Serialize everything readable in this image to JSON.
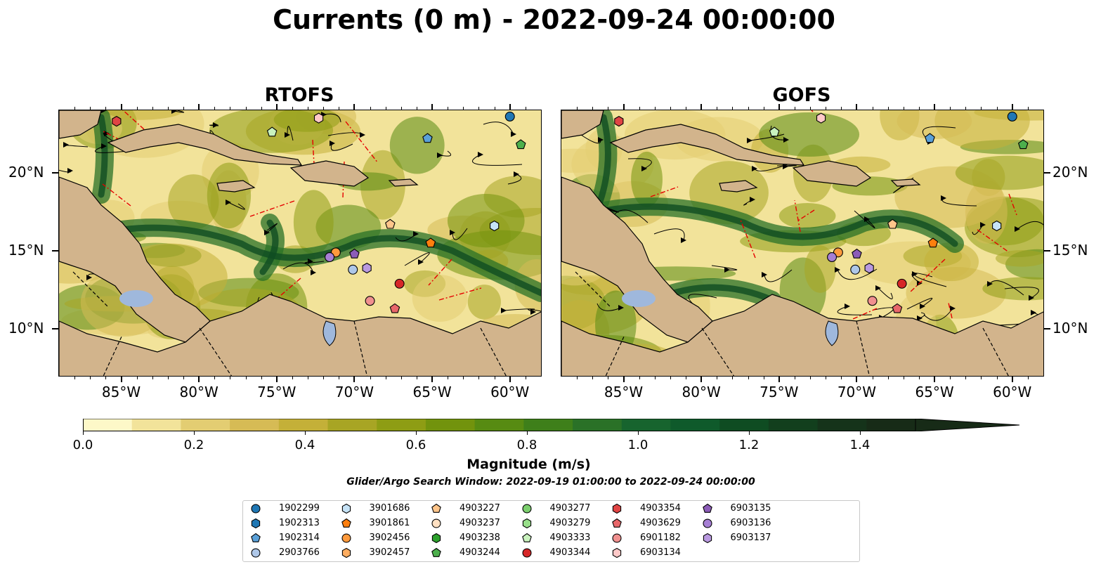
{
  "title": "Currents (0 m) - 2022-09-24 00:00:00",
  "panels": [
    {
      "name": "RTOFS"
    },
    {
      "name": "GOFS"
    }
  ],
  "map_extent": {
    "lon": [
      -89,
      -58
    ],
    "lat": [
      7,
      24
    ]
  },
  "lon_ticks": [
    {
      "value": -85,
      "label": "85°W"
    },
    {
      "value": -80,
      "label": "80°W"
    },
    {
      "value": -75,
      "label": "75°W"
    },
    {
      "value": -70,
      "label": "70°W"
    },
    {
      "value": -65,
      "label": "65°W"
    },
    {
      "value": -60,
      "label": "60°W"
    }
  ],
  "lat_ticks": [
    {
      "value": 10,
      "label": "10°N"
    },
    {
      "value": 15,
      "label": "15°N"
    },
    {
      "value": 20,
      "label": "20°N"
    }
  ],
  "colorbar": {
    "title": "Magnitude (m/s)",
    "range": [
      0,
      1.5
    ],
    "extend": "max",
    "colors": [
      "#fdf8c8",
      "#f2e39a",
      "#e3cd72",
      "#d6bb55",
      "#c4b038",
      "#a8a524",
      "#8e9d14",
      "#72930d",
      "#578b12",
      "#3e7f1a",
      "#2a7127",
      "#17642e",
      "#0f5a2b",
      "#0f4c22",
      "#123f1d",
      "#15331a",
      "#172b17"
    ],
    "ticks": [
      {
        "value": 0.0,
        "label": "0.0"
      },
      {
        "value": 0.2,
        "label": "0.2"
      },
      {
        "value": 0.4,
        "label": "0.4"
      },
      {
        "value": 0.6,
        "label": "0.6"
      },
      {
        "value": 0.8,
        "label": "0.8"
      },
      {
        "value": 1.0,
        "label": "1.0"
      },
      {
        "value": 1.2,
        "label": "1.2"
      },
      {
        "value": 1.4,
        "label": "1.4"
      }
    ]
  },
  "search_window": "Glider/Argo Search Window: 2022-09-19 01:00:00 to 2022-09-24 00:00:00",
  "legend": [
    {
      "id": "1902299",
      "shape": "circle",
      "color": "#1f77b4"
    },
    {
      "id": "1902313",
      "shape": "hexagon",
      "color": "#1f77b4"
    },
    {
      "id": "1902314",
      "shape": "pentagon",
      "color": "#5aa0d8"
    },
    {
      "id": "2903766",
      "shape": "circle",
      "color": "#aec7e8"
    },
    {
      "id": "3901686",
      "shape": "hexagon",
      "color": "#c6e3f7"
    },
    {
      "id": "3901861",
      "shape": "pentagon",
      "color": "#ff7f0e"
    },
    {
      "id": "3902456",
      "shape": "circle",
      "color": "#ff9a3c"
    },
    {
      "id": "3902457",
      "shape": "hexagon",
      "color": "#ffad60"
    },
    {
      "id": "4903227",
      "shape": "pentagon",
      "color": "#ffc58a"
    },
    {
      "id": "4903237",
      "shape": "circle",
      "color": "#ffe0c2"
    },
    {
      "id": "4903238",
      "shape": "hexagon",
      "color": "#2ca02c"
    },
    {
      "id": "4903244",
      "shape": "pentagon",
      "color": "#4caf4c"
    },
    {
      "id": "4903277",
      "shape": "circle",
      "color": "#7ccf6e"
    },
    {
      "id": "4903279",
      "shape": "hexagon",
      "color": "#98df8a"
    },
    {
      "id": "4903333",
      "shape": "pentagon",
      "color": "#c9f2be"
    },
    {
      "id": "4903344",
      "shape": "circle",
      "color": "#d62728"
    },
    {
      "id": "4903354",
      "shape": "hexagon",
      "color": "#e04444"
    },
    {
      "id": "4903629",
      "shape": "pentagon",
      "color": "#e8676a"
    },
    {
      "id": "6901182",
      "shape": "circle",
      "color": "#f0908f"
    },
    {
      "id": "6903134",
      "shape": "hexagon",
      "color": "#ffc9c8"
    },
    {
      "id": "6903135",
      "shape": "pentagon",
      "color": "#8c5cb8"
    },
    {
      "id": "6903136",
      "shape": "circle",
      "color": "#a67fd4"
    },
    {
      "id": "6903137",
      "shape": "hexagon",
      "color": "#b999e0"
    }
  ],
  "floats": [
    {
      "id": "4903354",
      "lon": -85.3,
      "lat": 23.3
    },
    {
      "id": "6903134",
      "lon": -72.3,
      "lat": 23.5
    },
    {
      "id": "4903333",
      "lon": -75.3,
      "lat": 22.6
    },
    {
      "id": "1902314",
      "lon": -65.3,
      "lat": 22.2
    },
    {
      "id": "1902299",
      "lon": -60.0,
      "lat": 23.6
    },
    {
      "id": "4903244",
      "lon": -59.3,
      "lat": 21.8
    },
    {
      "id": "4903227",
      "lon": -67.7,
      "lat": 16.7
    },
    {
      "id": "3901861",
      "lon": -65.1,
      "lat": 15.5
    },
    {
      "id": "3901686",
      "lon": -61.0,
      "lat": 16.6
    },
    {
      "id": "3902456",
      "lon": -71.2,
      "lat": 14.9
    },
    {
      "id": "6903136",
      "lon": -71.6,
      "lat": 14.6
    },
    {
      "id": "6903135",
      "lon": -70.0,
      "lat": 14.8
    },
    {
      "id": "6903137",
      "lon": -69.2,
      "lat": 13.9
    },
    {
      "id": "2903766",
      "lon": -70.1,
      "lat": 13.8
    },
    {
      "id": "4903344",
      "lon": -67.1,
      "lat": 12.9
    },
    {
      "id": "6901182",
      "lon": -69.0,
      "lat": 11.8
    },
    {
      "id": "4903629",
      "lon": -67.4,
      "lat": 11.3
    }
  ]
}
